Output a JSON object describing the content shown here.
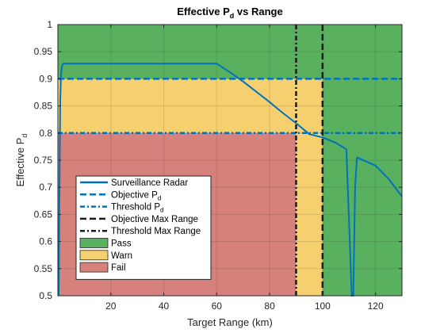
{
  "chart_data": {
    "type": "line",
    "title": "Effective P",
    "title_sub": "d",
    "title_suffix": " vs Range",
    "xlabel": "Target Range (km)",
    "ylabel": "Effective P",
    "ylabel_sub": "d",
    "xlim": [
      0,
      130
    ],
    "ylim": [
      0.5,
      1.0
    ],
    "xticks": [
      20,
      40,
      60,
      80,
      100,
      120
    ],
    "yticks": [
      0.5,
      0.55,
      0.6,
      0.65,
      0.7,
      0.75,
      0.8,
      0.85,
      0.9,
      0.95,
      1
    ],
    "ytick_labels": [
      "0.5",
      "0.55",
      "0.6",
      "0.65",
      "0.7",
      "0.75",
      "0.8",
      "0.85",
      "0.9",
      "0.95",
      "1"
    ],
    "grid": true,
    "legend_position": "lower-left",
    "regions": [
      {
        "name": "Pass",
        "color": "#59b15f",
        "x": [
          0,
          130
        ],
        "y": [
          0.5,
          1.0
        ]
      },
      {
        "name": "Warn",
        "color": "#f6cf6f",
        "x": [
          0,
          100
        ],
        "y": [
          0.5,
          0.9
        ]
      },
      {
        "name": "Fail",
        "color": "#d6817c",
        "x": [
          0,
          90
        ],
        "y": [
          0.5,
          0.8
        ]
      }
    ],
    "series": [
      {
        "name": "Surveillance Radar",
        "color": "#0072bd",
        "style": "solid",
        "x": [
          0.3,
          0.6,
          0.9,
          1.2,
          1.6,
          2,
          60,
          65,
          70,
          75,
          80,
          85,
          90,
          95,
          100,
          105,
          109,
          109.5,
          110.3,
          111,
          111.6,
          112.3,
          113,
          120,
          125,
          130
        ],
        "y": [
          0.5,
          0.7,
          0.86,
          0.91,
          0.924,
          0.928,
          0.928,
          0.912,
          0.895,
          0.876,
          0.857,
          0.837,
          0.818,
          0.798,
          0.792,
          0.782,
          0.77,
          0.7,
          0.6,
          0.5,
          0.5,
          0.7,
          0.755,
          0.74,
          0.715,
          0.683
        ]
      }
    ],
    "reference_lines": [
      {
        "name": "Objective P",
        "name_sub": "d",
        "orientation": "horizontal",
        "value": 0.9,
        "color": "#0072bd",
        "style": "dashed"
      },
      {
        "name": "Threshold P",
        "name_sub": "d",
        "orientation": "horizontal",
        "value": 0.8,
        "color": "#0072bd",
        "style": "dashdot"
      },
      {
        "name": "Objective Max Range",
        "orientation": "vertical",
        "value": 100,
        "color": "#1a1a1a",
        "style": "dashed"
      },
      {
        "name": "Threshold Max Range",
        "orientation": "vertical",
        "value": 90,
        "color": "#1a1a1a",
        "style": "dashdot"
      }
    ]
  }
}
